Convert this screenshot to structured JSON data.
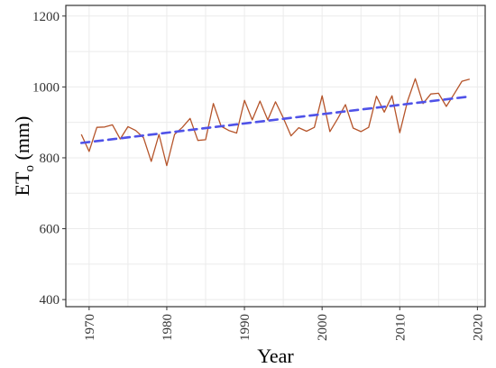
{
  "chart_data": {
    "type": "line",
    "title": "",
    "xlabel": "Year",
    "ylabel_main": "ET",
    "ylabel_sub": "o",
    "ylabel_unit": " (mm)",
    "xlim": [
      1967,
      2021
    ],
    "ylim": [
      380,
      1230
    ],
    "xticks": [
      1970,
      1980,
      1990,
      2000,
      2010,
      2020
    ],
    "yticks": [
      400,
      600,
      800,
      1000,
      1200
    ],
    "grid": true,
    "legend": "none",
    "series": [
      {
        "style": "solid",
        "color": "#b5542a",
        "x": [
          1969,
          1970,
          1971,
          1972,
          1973,
          1974,
          1975,
          1976,
          1977,
          1978,
          1979,
          1980,
          1981,
          1982,
          1983,
          1984,
          1985,
          1986,
          1987,
          1988,
          1989,
          1990,
          1991,
          1992,
          1993,
          1994,
          1995,
          1996,
          1997,
          1998,
          1999,
          2000,
          2001,
          2002,
          2003,
          2004,
          2005,
          2006,
          2007,
          2008,
          2009,
          2010,
          2011,
          2012,
          2013,
          2014,
          2015,
          2016,
          2017,
          2018,
          2019
        ],
        "y": [
          866,
          818,
          886,
          887,
          893,
          853,
          888,
          877,
          857,
          790,
          866,
          778,
          866,
          886,
          911,
          849,
          851,
          953,
          889,
          877,
          870,
          962,
          907,
          960,
          907,
          958,
          913,
          862,
          885,
          875,
          886,
          975,
          874,
          910,
          950,
          884,
          874,
          886,
          974,
          929,
          975,
          871,
          960,
          1023,
          953,
          980,
          982,
          945,
          980,
          1016,
          1022
        ]
      },
      {
        "style": "dashed",
        "color": "#4f52e8",
        "x": [
          1969,
          2019
        ],
        "y": [
          842,
          973
        ]
      }
    ]
  }
}
